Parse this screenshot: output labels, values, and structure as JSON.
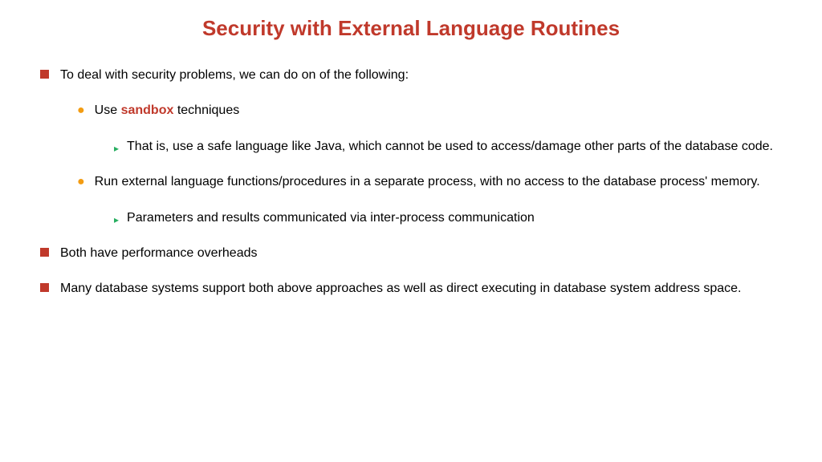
{
  "title": {
    "text": "Security with External Language Routines",
    "color": "#c0392b",
    "fontsize": 26
  },
  "text": {
    "color": "#000000",
    "fontsize": 16
  },
  "bullets": {
    "lvl1": {
      "type": "square",
      "color": "#c0392b",
      "size": 11
    },
    "lvl2": {
      "type": "circle",
      "color": "#f39c12",
      "glyph": "●"
    },
    "lvl3": {
      "type": "triangle",
      "color": "#27ae60",
      "glyph": "▸"
    }
  },
  "items": [
    {
      "level": 1,
      "text": "To deal with security problems, we can do on of the following:"
    },
    {
      "level": 2,
      "prefix": "Use ",
      "bold": "sandbox",
      "suffix": " techniques"
    },
    {
      "level": 3,
      "text": "That is, use a safe language like Java, which cannot be used to  access/damage other parts of the database code."
    },
    {
      "level": 2,
      "text": "Run external language functions/procedures in a separate process, with no access to the database process' memory."
    },
    {
      "level": 3,
      "text": "Parameters and results communicated via inter-process communication"
    },
    {
      "level": 1,
      "text": "Both have performance overheads"
    },
    {
      "level": 1,
      "text": "Many database systems support both above approaches as well as direct executing in database system address space."
    }
  ]
}
